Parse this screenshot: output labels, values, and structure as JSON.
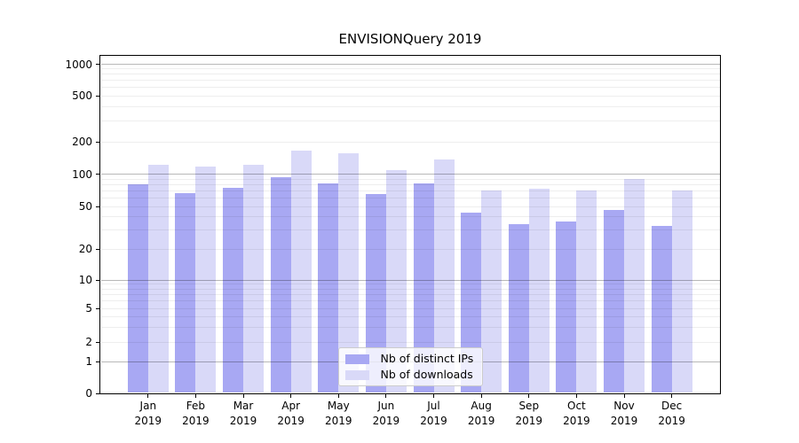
{
  "figure": {
    "title": "ENVISIONQuery 2019"
  },
  "chart_data": {
    "type": "bar",
    "title": "ENVISIONQuery 2019",
    "categories": [
      "Jan 2019",
      "Feb 2019",
      "Mar 2019",
      "Apr 2019",
      "May 2019",
      "Jun 2019",
      "Jul 2019",
      "Aug 2019",
      "Sep 2019",
      "Oct 2019",
      "Nov 2019",
      "Dec 2019"
    ],
    "x_tick_months": [
      "Jan",
      "Feb",
      "Mar",
      "Apr",
      "May",
      "Jun",
      "Jul",
      "Aug",
      "Sep",
      "Oct",
      "Nov",
      "Dec"
    ],
    "x_tick_year": "2019",
    "series": [
      {
        "name": "Nb of distinct IPs",
        "color": "#a8a8f3",
        "values": [
          81,
          67,
          74,
          93,
          82,
          65,
          82,
          44,
          34,
          36,
          46,
          33
        ]
      },
      {
        "name": "Nb of downloads",
        "color": "#d9d9f8",
        "values": [
          122,
          118,
          122,
          165,
          155,
          108,
          137,
          70,
          73,
          71,
          90,
          71
        ]
      }
    ],
    "y_axis": {
      "scale": "symlog",
      "range": [
        0,
        1000
      ],
      "ticks": [
        0,
        1,
        2,
        5,
        10,
        20,
        50,
        100,
        200,
        500,
        1000
      ],
      "major_gridlines": [
        1,
        10,
        100,
        1000
      ],
      "minor_gridlines": [
        2,
        3,
        4,
        5,
        6,
        7,
        8,
        9,
        20,
        30,
        40,
        50,
        60,
        70,
        80,
        90,
        200,
        300,
        400,
        500,
        600,
        700,
        800,
        900
      ]
    },
    "legend": {
      "position": "lower-center"
    },
    "grid": {
      "horizontal": true,
      "minor": true
    }
  }
}
